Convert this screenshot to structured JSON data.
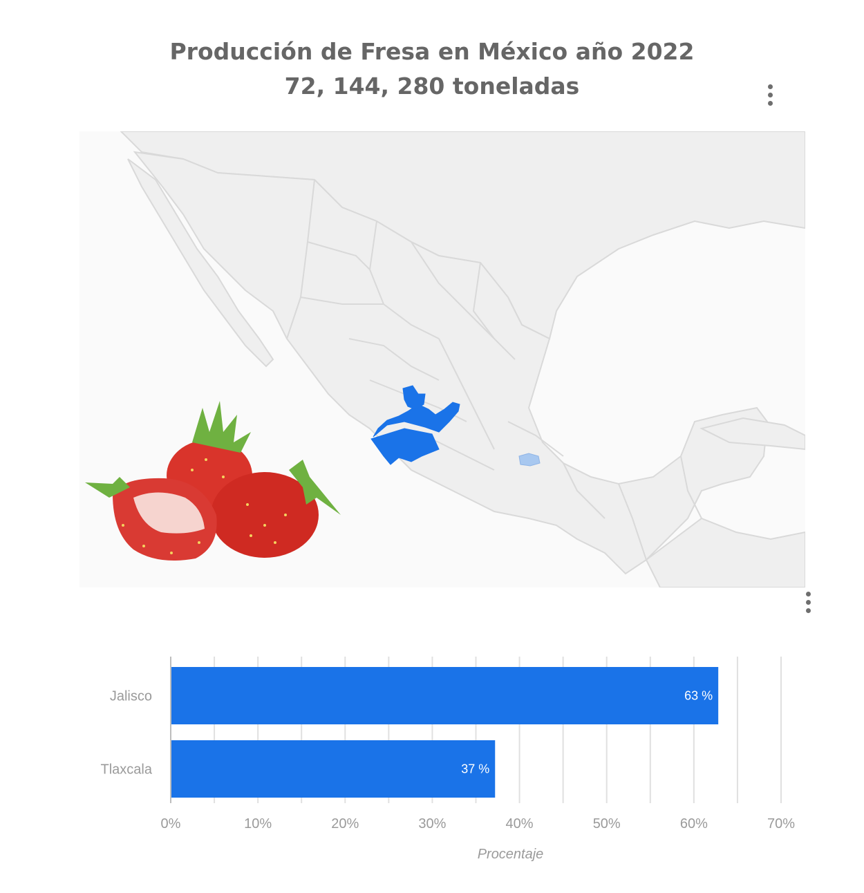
{
  "header": {
    "title_line1": "Producción de Fresa en México año 2022",
    "title_line2": "72, 144, 280 toneladas"
  },
  "map": {
    "highlighted_states": [
      "Jalisco",
      "Tlaxcala"
    ],
    "colors": {
      "land": "#efefef",
      "border": "#d9d9d9",
      "jalisco": "#1a73e8",
      "tlaxcala": "#a8c8f0"
    }
  },
  "icons": {
    "menu": "kebab-menu-icon",
    "fruit": "strawberry-illustration"
  },
  "chart_data": {
    "type": "bar",
    "orientation": "horizontal",
    "categories": [
      "Jalisco",
      "Tlaxcala"
    ],
    "values": [
      62.8,
      37.2
    ],
    "data_labels": [
      "63 %",
      "37 %"
    ],
    "xlabel": "Procentaje",
    "xlim": [
      0,
      70
    ],
    "x_ticks": [
      "0%",
      "10%",
      "20%",
      "30%",
      "40%",
      "50%",
      "60%",
      "70%"
    ],
    "bar_color": "#1a73e8",
    "grid": true
  }
}
